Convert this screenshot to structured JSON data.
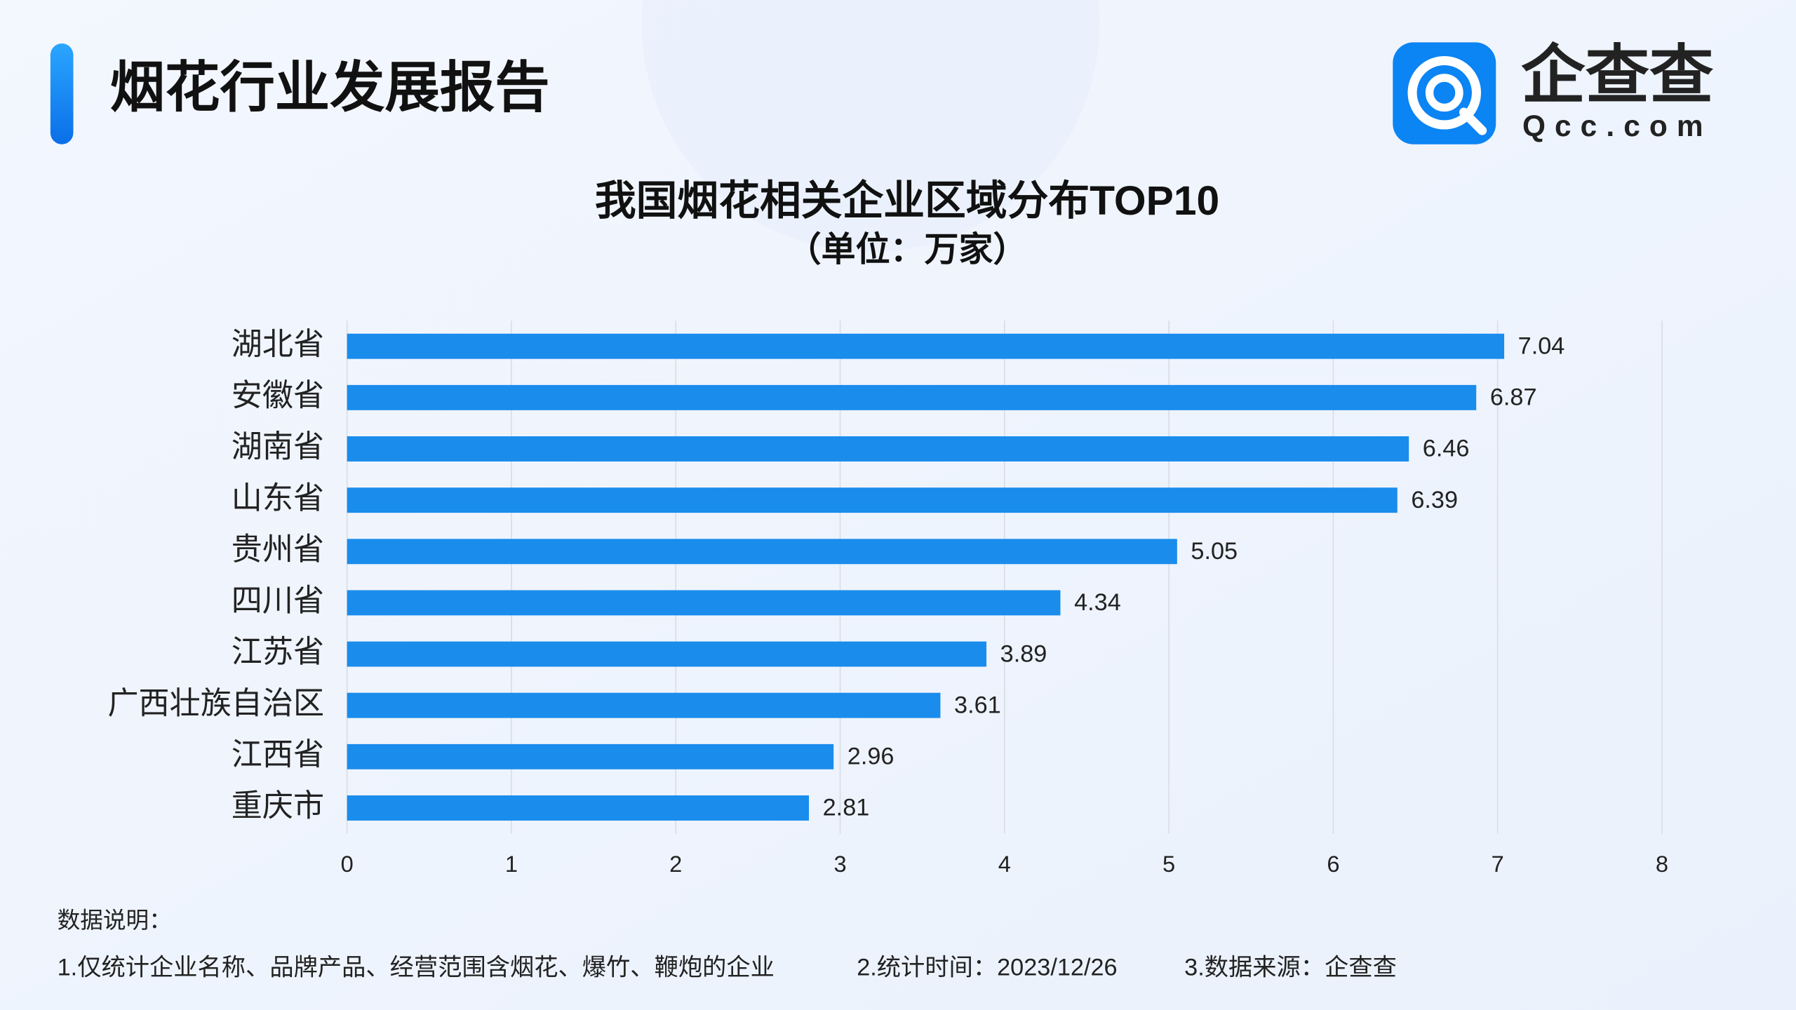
{
  "header": {
    "title": "烟花行业发展报告",
    "logo_name": "企查查",
    "logo_domain": "Qcc.com"
  },
  "chart_data": {
    "type": "bar",
    "orientation": "horizontal",
    "title": "我国烟花相关企业区域分布TOP10",
    "subtitle": "（单位：万家）",
    "categories": [
      "湖北省",
      "安徽省",
      "湖南省",
      "山东省",
      "贵州省",
      "四川省",
      "江苏省",
      "广西壮族自治区",
      "江西省",
      "重庆市"
    ],
    "values": [
      7.04,
      6.87,
      6.46,
      6.39,
      5.05,
      4.34,
      3.89,
      3.61,
      2.96,
      2.81
    ],
    "color": "#1a8cec",
    "xlim": [
      0,
      8
    ],
    "xticks": [
      0,
      1,
      2,
      3,
      4,
      5,
      6,
      7,
      8
    ],
    "grid": true
  },
  "notes": {
    "heading": "数据说明：",
    "items": [
      "1.仅统计企业名称、品牌产品、经营范围含烟花、爆竹、鞭炮的企业",
      "2.统计时间：2023/12/26",
      "3.数据来源：企查查"
    ]
  }
}
